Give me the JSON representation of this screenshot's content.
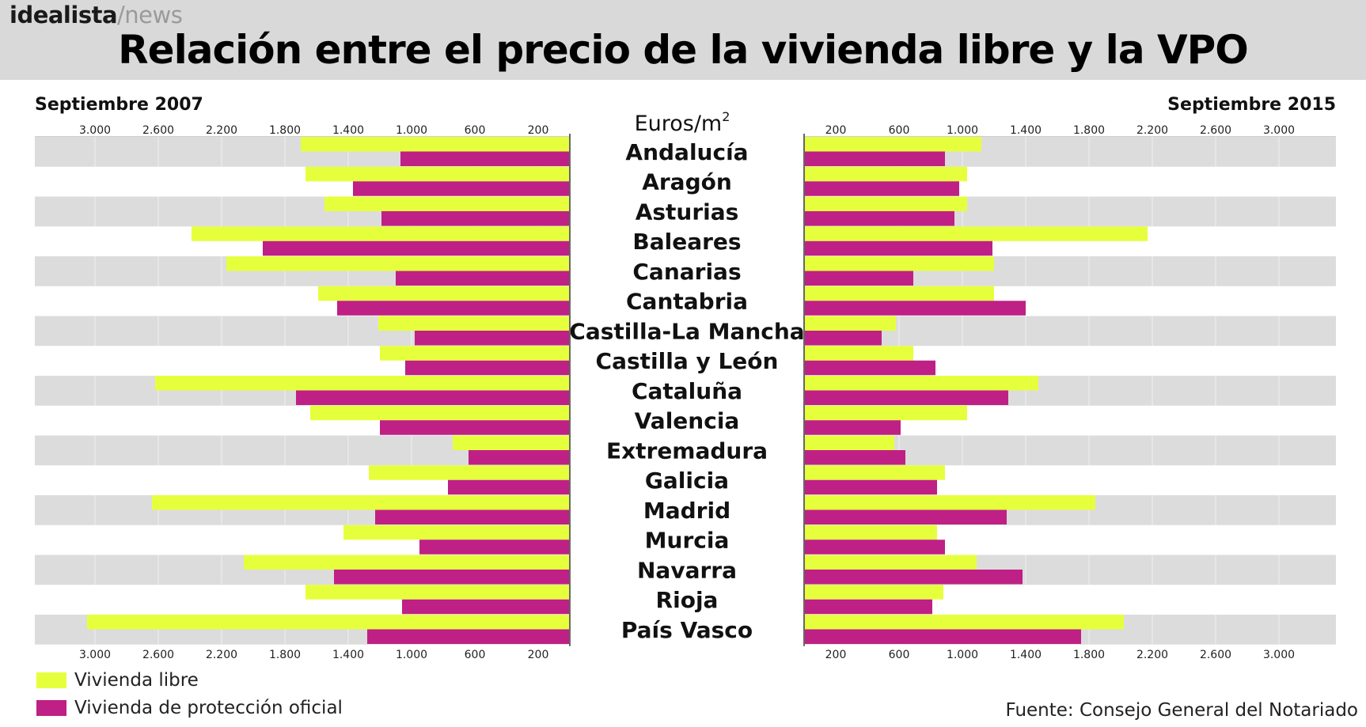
{
  "brand": {
    "main": "idealista",
    "slash": "/",
    "sub": "news"
  },
  "title": "Relación entre el precio de la vivienda libre y la VPO",
  "legend": {
    "libre": "Vivienda libre",
    "vpo": "Vivienda de protección oficial"
  },
  "source": "Fuente: Consejo General del Notariado",
  "colors": {
    "libre": "#e6ff3d",
    "vpo": "#bf2085",
    "stripe": "#dcdcdc",
    "axis": "#666666"
  },
  "chart_data": {
    "type": "bar",
    "orientation": "horizontal-butterfly",
    "title": "Relación entre el precio de la vivienda libre y la VPO",
    "unit_label": "Euros/m",
    "unit_sup": "2",
    "left_panel_title": "Septiembre 2007",
    "right_panel_title": "Septiembre 2015",
    "xlim": [
      0,
      3300
    ],
    "ticks": [
      200,
      600,
      1000,
      1400,
      1800,
      2200,
      2600,
      3000
    ],
    "tick_labels": [
      "200",
      "600",
      "1.000",
      "1.400",
      "1.800",
      "2.200",
      "2.600",
      "3.000"
    ],
    "categories": [
      "Andalucía",
      "Aragón",
      "Asturias",
      "Baleares",
      "Canarias",
      "Cantabria",
      "Castilla-La Mancha",
      "Castilla y León",
      "Cataluña",
      "Valencia",
      "Extremadura",
      "Galicia",
      "Madrid",
      "Murcia",
      "Navarra",
      "Rioja",
      "País Vasco"
    ],
    "series": [
      {
        "name": "Vivienda libre",
        "period": "Septiembre 2007",
        "values": [
          1700,
          1670,
          1550,
          2390,
          2170,
          1590,
          1210,
          1200,
          2620,
          1640,
          740,
          1270,
          2640,
          1430,
          2060,
          1670,
          3050
        ]
      },
      {
        "name": "Vivienda de protección oficial",
        "period": "Septiembre 2007",
        "values": [
          1070,
          1370,
          1190,
          1940,
          1100,
          1470,
          980,
          1040,
          1730,
          1200,
          640,
          770,
          1230,
          950,
          1490,
          1060,
          1280
        ]
      },
      {
        "name": "Vivienda libre",
        "period": "Septiembre 2015",
        "values": [
          1120,
          1030,
          1030,
          2170,
          1200,
          1200,
          580,
          690,
          1480,
          1030,
          570,
          890,
          1840,
          840,
          1090,
          880,
          2020
        ]
      },
      {
        "name": "Vivienda de protección oficial",
        "period": "Septiembre 2015",
        "values": [
          890,
          980,
          950,
          1190,
          690,
          1400,
          490,
          830,
          1290,
          610,
          640,
          840,
          1280,
          890,
          1380,
          810,
          1750
        ]
      }
    ]
  }
}
